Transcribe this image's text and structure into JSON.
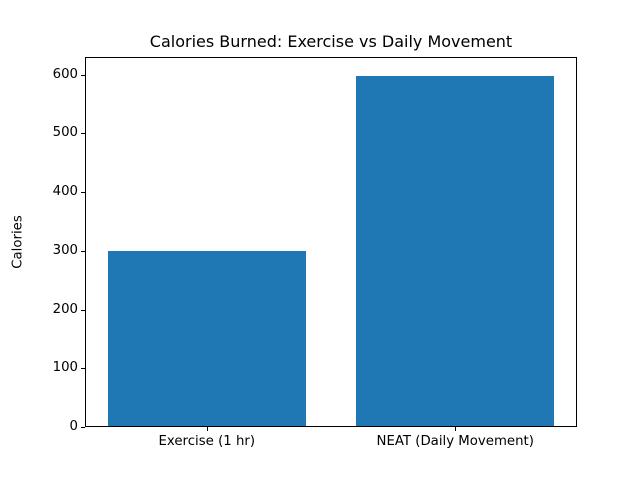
{
  "chart_data": {
    "type": "bar",
    "title": "Calories Burned: Exercise vs Daily Movement",
    "categories": [
      "Exercise (1 hr)",
      "NEAT (Daily Movement)"
    ],
    "values": [
      300,
      600
    ],
    "xlabel": "",
    "ylabel": "Calories",
    "ylim": [
      0,
      630
    ],
    "yticks": [
      0,
      100,
      200,
      300,
      400,
      500,
      600
    ],
    "bar_color": "#1f77b4",
    "axis_color": "#000000",
    "background_color": "#ffffff",
    "grid": "off",
    "legend": "none",
    "bar_width_fraction": 0.404,
    "bar_centers_fraction": [
      0.2475,
      0.7525
    ]
  }
}
